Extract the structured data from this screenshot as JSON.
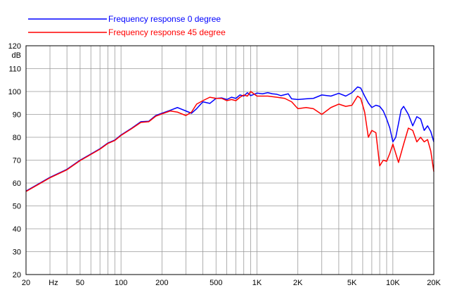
{
  "chart_data": {
    "type": "line",
    "title": "",
    "xlabel": "Hz",
    "ylabel": "dB",
    "xscale": "log",
    "xlim": [
      20,
      20000
    ],
    "ylim": [
      20,
      120
    ],
    "grid": true,
    "legend_position": "top-left",
    "x_ticks": [
      {
        "value": 20,
        "label": "20"
      },
      {
        "value": 50,
        "label": "50"
      },
      {
        "value": 100,
        "label": "100"
      },
      {
        "value": 200,
        "label": "200"
      },
      {
        "value": 500,
        "label": "500"
      },
      {
        "value": 1000,
        "label": "1K"
      },
      {
        "value": 2000,
        "label": "2K"
      },
      {
        "value": 5000,
        "label": "5K"
      },
      {
        "value": 10000,
        "label": "10K"
      },
      {
        "value": 20000,
        "label": "20K"
      }
    ],
    "y_ticks": [
      20,
      30,
      40,
      50,
      60,
      70,
      80,
      90,
      100,
      110,
      120
    ],
    "series": [
      {
        "name": "Frequency response 0 degree",
        "color": "#0000ff",
        "points": [
          [
            20,
            56.5
          ],
          [
            25,
            59.8
          ],
          [
            30,
            62.5
          ],
          [
            40,
            66.0
          ],
          [
            50,
            70.0
          ],
          [
            60,
            72.7
          ],
          [
            70,
            75.0
          ],
          [
            80,
            77.5
          ],
          [
            90,
            78.8
          ],
          [
            100,
            81.0
          ],
          [
            120,
            84.0
          ],
          [
            140,
            86.8
          ],
          [
            160,
            87.0
          ],
          [
            180,
            89.5
          ],
          [
            200,
            90.5
          ],
          [
            230,
            91.8
          ],
          [
            260,
            93.0
          ],
          [
            300,
            91.5
          ],
          [
            330,
            90.5
          ],
          [
            360,
            92.5
          ],
          [
            400,
            95.5
          ],
          [
            450,
            94.8
          ],
          [
            500,
            97.0
          ],
          [
            550,
            97.2
          ],
          [
            600,
            96.5
          ],
          [
            650,
            97.5
          ],
          [
            700,
            97.0
          ],
          [
            750,
            98.5
          ],
          [
            800,
            98.0
          ],
          [
            850,
            99.5
          ],
          [
            900,
            98.2
          ],
          [
            1000,
            99.3
          ],
          [
            1100,
            99.0
          ],
          [
            1200,
            99.5
          ],
          [
            1300,
            99.0
          ],
          [
            1400,
            98.8
          ],
          [
            1500,
            98.2
          ],
          [
            1700,
            99.0
          ],
          [
            1800,
            96.8
          ],
          [
            2000,
            96.5
          ],
          [
            2300,
            96.8
          ],
          [
            2600,
            97.0
          ],
          [
            3000,
            98.5
          ],
          [
            3500,
            98.0
          ],
          [
            4000,
            99.2
          ],
          [
            4500,
            98.0
          ],
          [
            5000,
            99.5
          ],
          [
            5500,
            102.0
          ],
          [
            5800,
            101.5
          ],
          [
            6200,
            98.0
          ],
          [
            6600,
            95.0
          ],
          [
            7000,
            93.0
          ],
          [
            7500,
            94.0
          ],
          [
            8000,
            93.5
          ],
          [
            8500,
            91.5
          ],
          [
            9000,
            88.0
          ],
          [
            9500,
            84.0
          ],
          [
            10000,
            78.0
          ],
          [
            10500,
            80.0
          ],
          [
            11000,
            86.0
          ],
          [
            11500,
            92.0
          ],
          [
            12000,
            93.5
          ],
          [
            13000,
            90.0
          ],
          [
            14000,
            85.0
          ],
          [
            15000,
            89.0
          ],
          [
            16000,
            88.0
          ],
          [
            17000,
            83.0
          ],
          [
            18000,
            85.0
          ],
          [
            19000,
            82.5
          ],
          [
            20000,
            78.0
          ]
        ]
      },
      {
        "name": "Frequency response 45 degree",
        "color": "#ff0000",
        "points": [
          [
            20,
            56.3
          ],
          [
            25,
            59.6
          ],
          [
            30,
            62.3
          ],
          [
            40,
            65.8
          ],
          [
            50,
            69.8
          ],
          [
            60,
            72.5
          ],
          [
            70,
            74.8
          ],
          [
            80,
            77.3
          ],
          [
            90,
            78.6
          ],
          [
            100,
            80.8
          ],
          [
            120,
            83.8
          ],
          [
            140,
            86.5
          ],
          [
            160,
            86.8
          ],
          [
            180,
            89.2
          ],
          [
            200,
            90.2
          ],
          [
            230,
            91.5
          ],
          [
            260,
            91.0
          ],
          [
            300,
            89.5
          ],
          [
            330,
            91.0
          ],
          [
            360,
            94.5
          ],
          [
            400,
            96.0
          ],
          [
            450,
            97.5
          ],
          [
            500,
            97.0
          ],
          [
            550,
            97.0
          ],
          [
            600,
            96.0
          ],
          [
            650,
            96.5
          ],
          [
            700,
            96.0
          ],
          [
            750,
            97.5
          ],
          [
            800,
            98.5
          ],
          [
            850,
            98.0
          ],
          [
            900,
            100.0
          ],
          [
            1000,
            98.0
          ],
          [
            1200,
            98.0
          ],
          [
            1400,
            97.5
          ],
          [
            1600,
            97.0
          ],
          [
            1800,
            95.5
          ],
          [
            2000,
            92.5
          ],
          [
            2300,
            93.0
          ],
          [
            2600,
            92.5
          ],
          [
            3000,
            90.0
          ],
          [
            3500,
            93.0
          ],
          [
            4000,
            94.5
          ],
          [
            4500,
            93.5
          ],
          [
            5000,
            94.0
          ],
          [
            5500,
            98.0
          ],
          [
            5800,
            97.0
          ],
          [
            6200,
            91.0
          ],
          [
            6600,
            80.0
          ],
          [
            7000,
            83.0
          ],
          [
            7500,
            82.0
          ],
          [
            8000,
            67.5
          ],
          [
            8500,
            70.0
          ],
          [
            9000,
            69.5
          ],
          [
            9500,
            73.0
          ],
          [
            10000,
            77.0
          ],
          [
            11000,
            69.0
          ],
          [
            12000,
            77.0
          ],
          [
            13000,
            84.0
          ],
          [
            14000,
            83.0
          ],
          [
            15000,
            78.0
          ],
          [
            16000,
            80.0
          ],
          [
            17000,
            78.0
          ],
          [
            18000,
            79.0
          ],
          [
            19000,
            74.0
          ],
          [
            20000,
            65.0
          ]
        ]
      }
    ]
  }
}
